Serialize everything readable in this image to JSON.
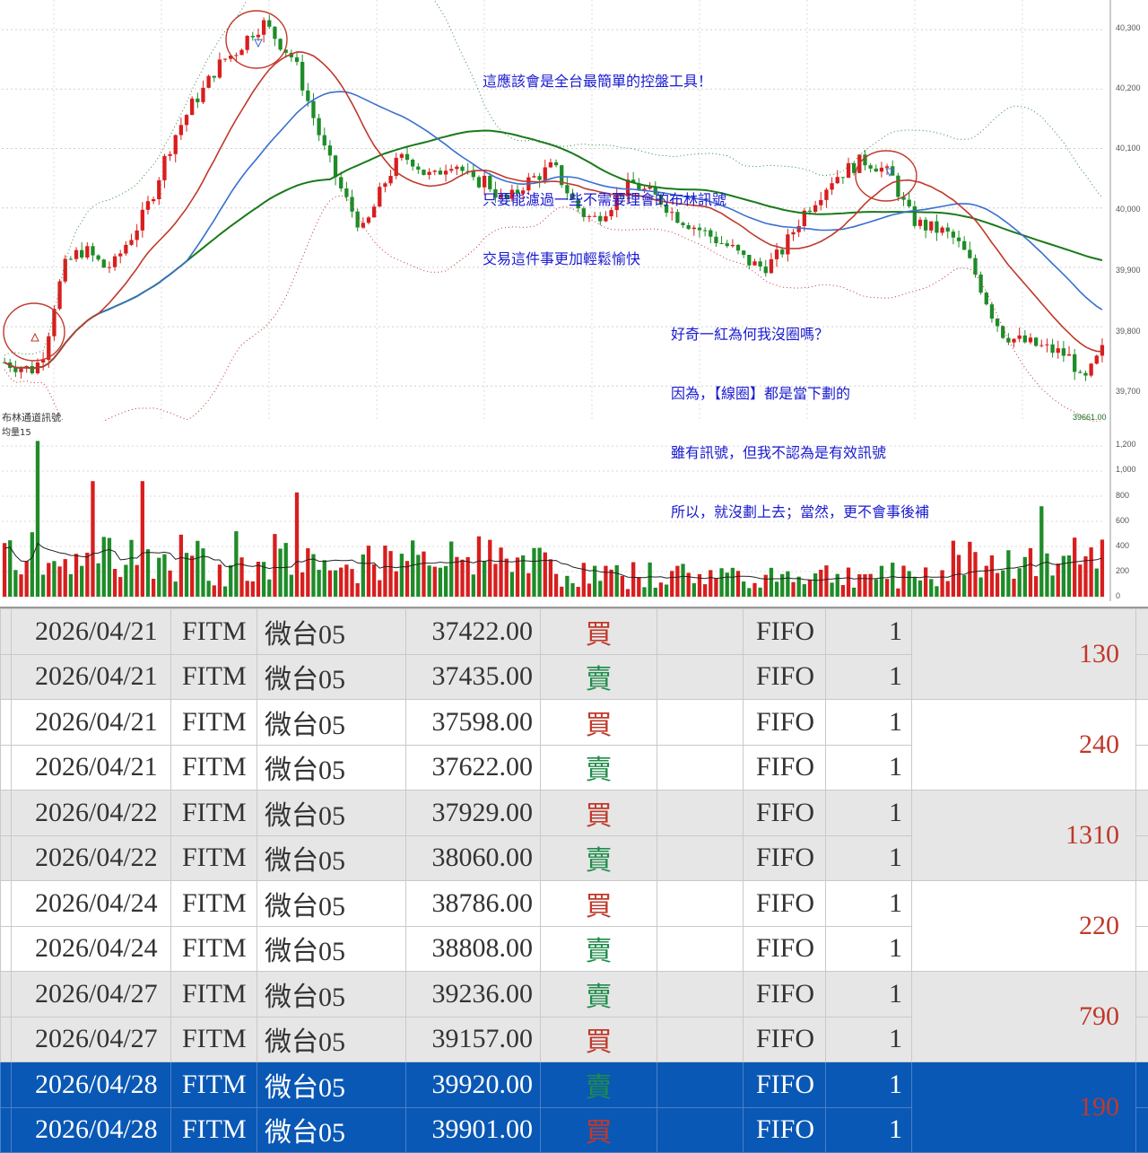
{
  "chart": {
    "indicator_label": "布林通道訊號",
    "volume_label": "均量15",
    "last_low_label": "39661.00",
    "price_axis": [
      "40,300",
      "40,200",
      "40,100",
      "40,000",
      "39,900",
      "39,800",
      "39,700"
    ],
    "volume_axis": [
      "1,200",
      "1,000",
      "800",
      "600",
      "400",
      "200",
      "0"
    ],
    "note_top": [
      "這應該會是全台最簡單的控盤工具！",
      "",
      "只要能濾過一些不需要理會的布林訊號",
      "交易這件事更加輕鬆愉快"
    ],
    "note_bottom": [
      "好奇一紅為何我沒圈嗎？",
      "因為，【線圈】都是當下劃的",
      "雖有訊號，但我不認為是有效訊號",
      "所以，就沒劃上去；當然，更不會事後補"
    ],
    "colors": {
      "up": "#d81e1e",
      "down": "#1e8c28",
      "ma_red": "#c0392b",
      "ma_blue": "#3a6fd0",
      "ma_green": "#1a7a1a",
      "note": "#1a1ad0"
    }
  },
  "chart_data": {
    "type": "line",
    "title": "",
    "price_ylim": [
      39640,
      40350
    ],
    "volume_ylim": [
      0,
      1250
    ],
    "close_series": [
      39740,
      39735,
      39730,
      39728,
      39760,
      39840,
      39900,
      39920,
      39930,
      39915,
      39900,
      39905,
      39935,
      39960,
      39990,
      40030,
      40080,
      40120,
      40150,
      40180,
      40200,
      40230,
      40250,
      40260,
      40280,
      40300,
      40310,
      40290,
      40270,
      40250,
      40200,
      40150,
      40100,
      40060,
      40020,
      39990,
      39960,
      40000,
      40040,
      40070,
      40085,
      40080,
      40060,
      40050,
      40070,
      40080,
      40060,
      40040,
      40050,
      40030,
      40010,
      40020,
      40040,
      40050,
      40060,
      40070,
      40040,
      40010,
      39990,
      39980,
      39995,
      40010,
      40030,
      40040,
      40030,
      40020,
      40010,
      39990,
      39980,
      39970,
      39960,
      39950,
      39940,
      39930,
      39915,
      39905,
      39900,
      39910,
      39930,
      39960,
      39990,
      40010,
      40030,
      40050,
      40060,
      40070,
      40080,
      40075,
      40065,
      40050,
      40010,
      39980,
      39970,
      39965,
      39960,
      39950,
      39930,
      39900,
      39860,
      39820,
      39790,
      39780,
      39775,
      39770,
      39765,
      39760,
      39755,
      39745,
      39700,
      39730,
      39760
    ]
  },
  "table": {
    "rows": [
      {
        "date": "2026/04/21",
        "ex": "FITM",
        "prod": "微台05",
        "price": "37422.00",
        "side": "買",
        "method": "FIFO",
        "qty": "1"
      },
      {
        "date": "2026/04/21",
        "ex": "FITM",
        "prod": "微台05",
        "price": "37435.00",
        "side": "賣",
        "method": "FIFO",
        "qty": "1"
      },
      {
        "date": "2026/04/21",
        "ex": "FITM",
        "prod": "微台05",
        "price": "37598.00",
        "side": "買",
        "method": "FIFO",
        "qty": "1"
      },
      {
        "date": "2026/04/21",
        "ex": "FITM",
        "prod": "微台05",
        "price": "37622.00",
        "side": "賣",
        "method": "FIFO",
        "qty": "1"
      },
      {
        "date": "2026/04/22",
        "ex": "FITM",
        "prod": "微台05",
        "price": "37929.00",
        "side": "買",
        "method": "FIFO",
        "qty": "1"
      },
      {
        "date": "2026/04/22",
        "ex": "FITM",
        "prod": "微台05",
        "price": "38060.00",
        "side": "賣",
        "method": "FIFO",
        "qty": "1"
      },
      {
        "date": "2026/04/24",
        "ex": "FITM",
        "prod": "微台05",
        "price": "38786.00",
        "side": "買",
        "method": "FIFO",
        "qty": "1"
      },
      {
        "date": "2026/04/24",
        "ex": "FITM",
        "prod": "微台05",
        "price": "38808.00",
        "side": "賣",
        "method": "FIFO",
        "qty": "1"
      },
      {
        "date": "2026/04/27",
        "ex": "FITM",
        "prod": "微台05",
        "price": "39236.00",
        "side": "賣",
        "method": "FIFO",
        "qty": "1"
      },
      {
        "date": "2026/04/27",
        "ex": "FITM",
        "prod": "微台05",
        "price": "39157.00",
        "side": "買",
        "method": "FIFO",
        "qty": "1"
      },
      {
        "date": "2026/04/28",
        "ex": "FITM",
        "prod": "微台05",
        "price": "39920.00",
        "side": "賣",
        "method": "FIFO",
        "qty": "1"
      },
      {
        "date": "2026/04/28",
        "ex": "FITM",
        "prod": "微台05",
        "price": "39901.00",
        "side": "買",
        "method": "FIFO",
        "qty": "1"
      }
    ],
    "pnl": [
      "130",
      "240",
      "1310",
      "220",
      "790",
      "190"
    ],
    "selected_group": 5
  }
}
